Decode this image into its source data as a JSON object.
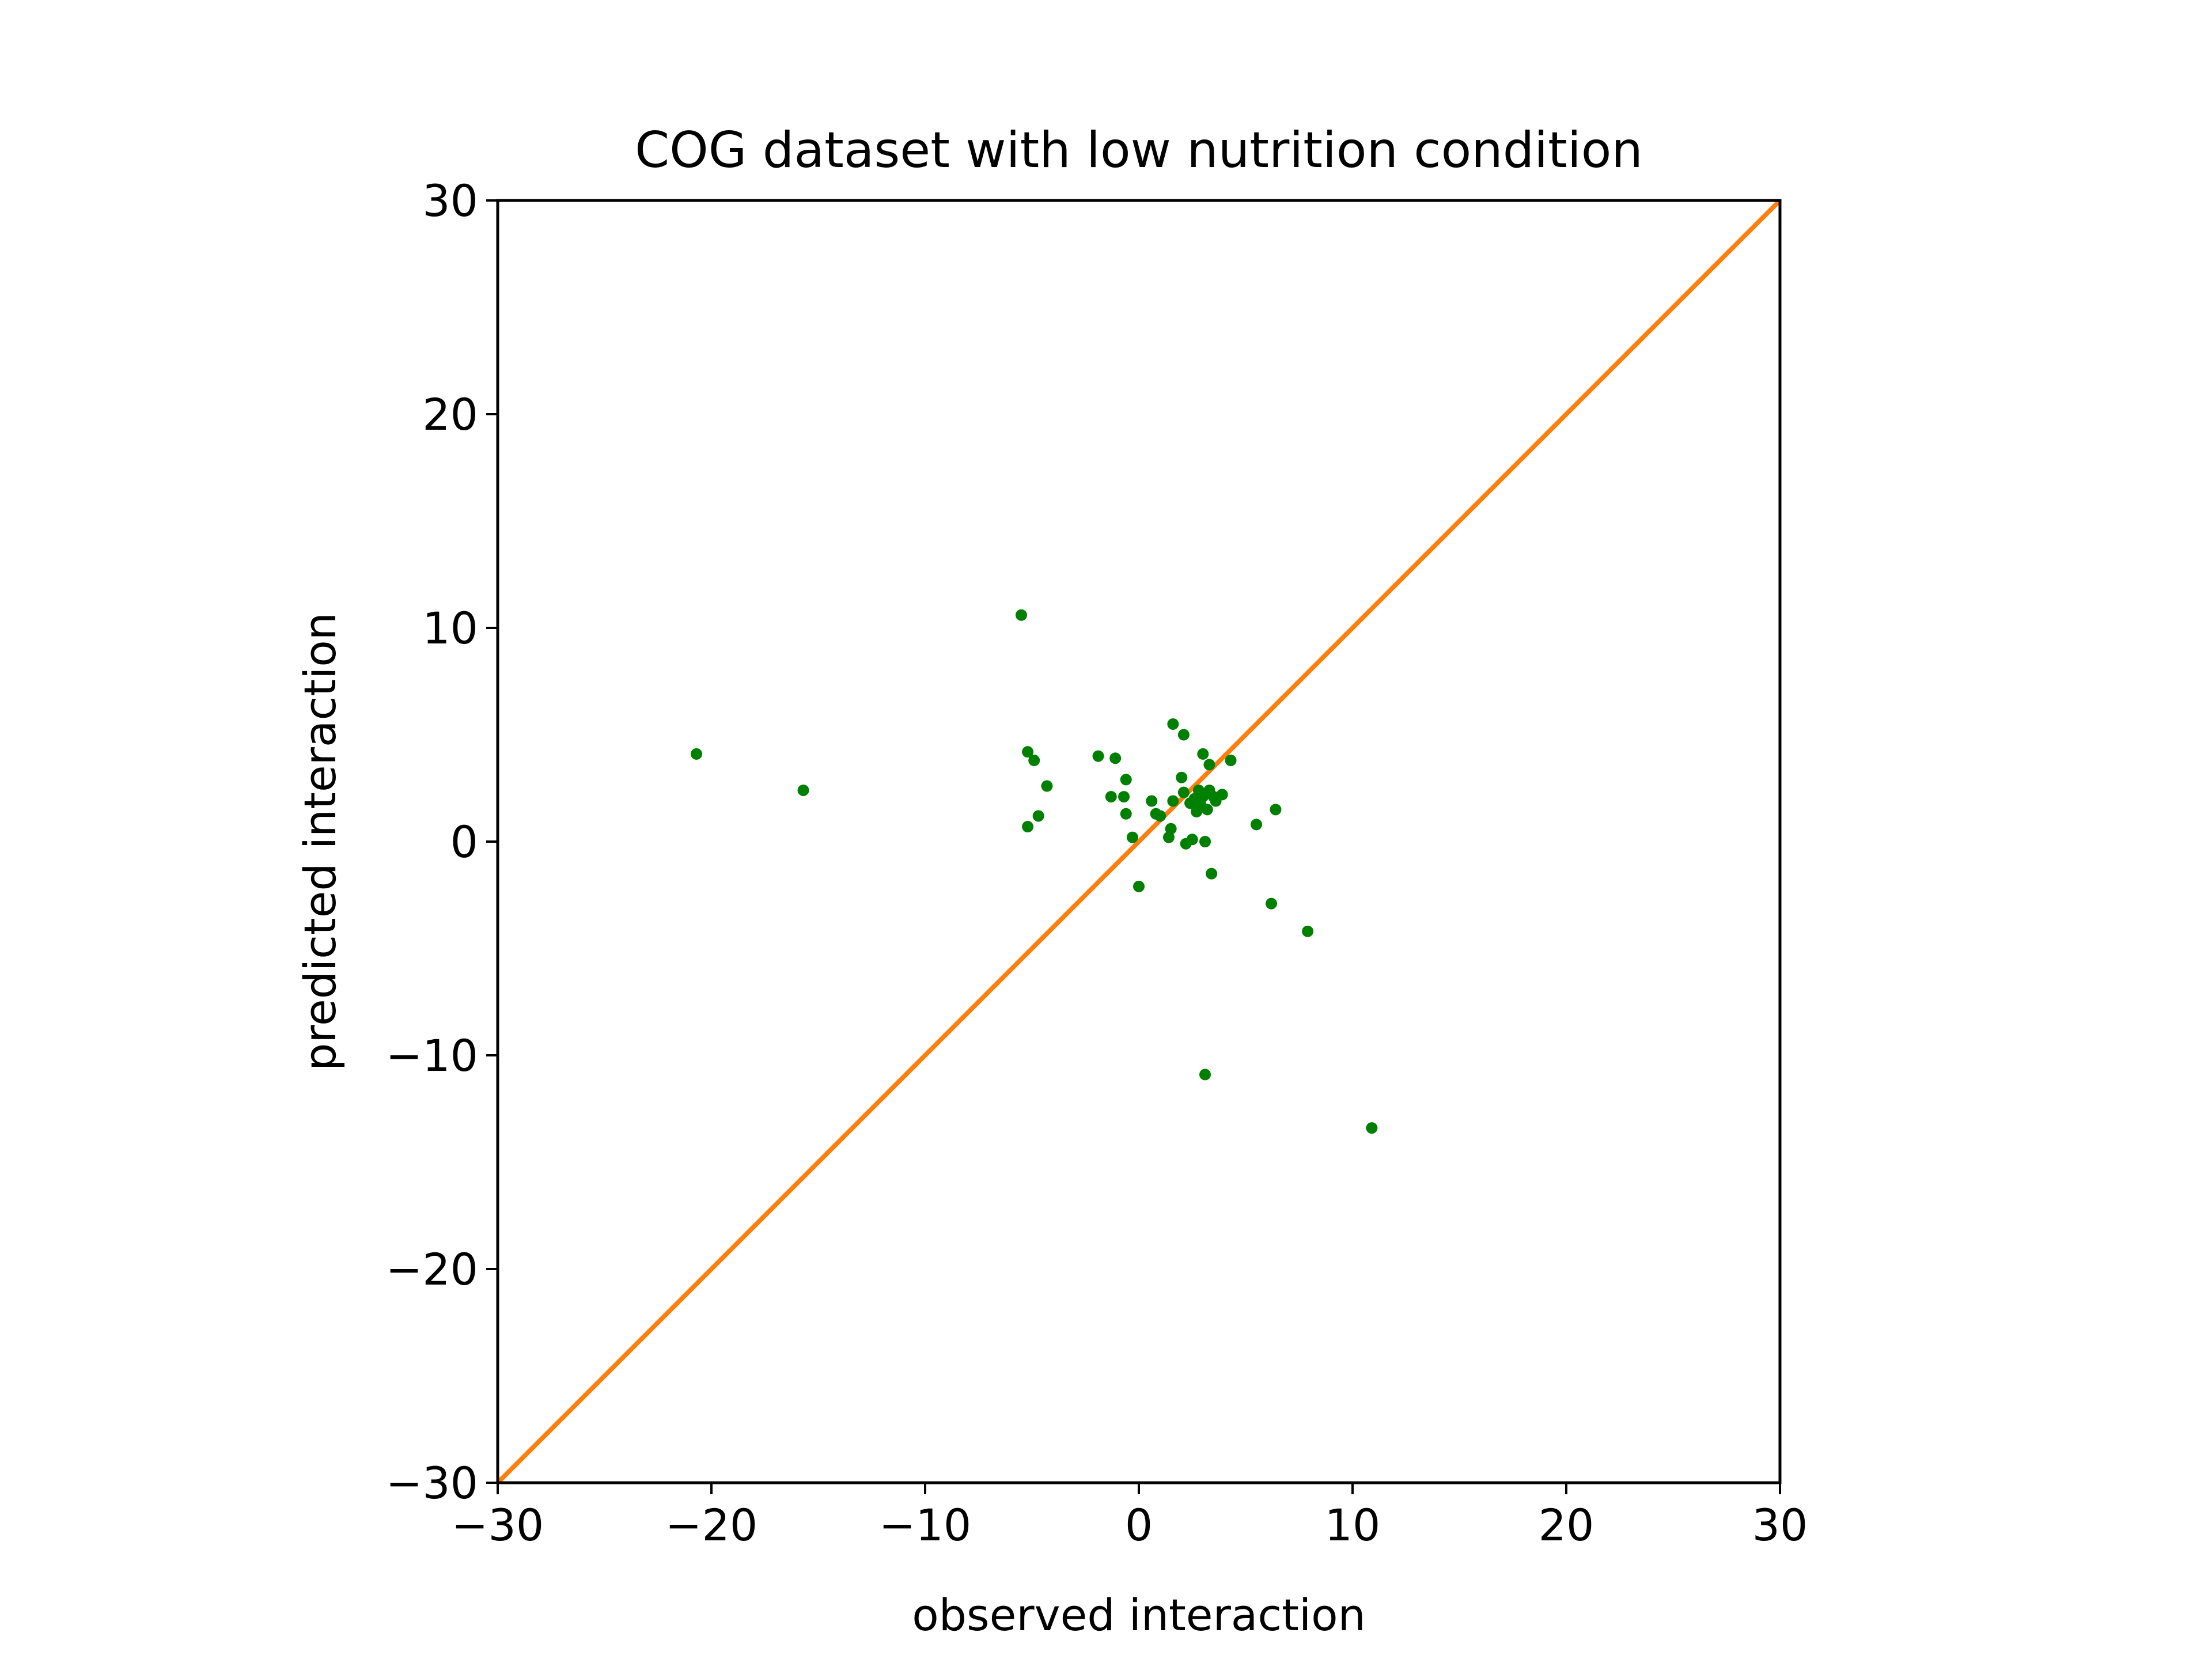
{
  "chart_data": {
    "type": "scatter",
    "title": "COG dataset with low nutrition condition",
    "xlabel": "observed interaction",
    "ylabel": "predicted interaction",
    "xlim": [
      -30,
      30
    ],
    "ylim": [
      -30,
      30
    ],
    "xticks": [
      -30,
      -20,
      -10,
      0,
      10,
      20,
      30
    ],
    "yticks": [
      -30,
      -20,
      -10,
      0,
      10,
      20,
      30
    ],
    "xtick_labels": [
      "−30",
      "−20",
      "−10",
      "0",
      "10",
      "20",
      "30"
    ],
    "ytick_labels": [
      "−30",
      "−20",
      "−10",
      "0",
      "10",
      "20",
      "30"
    ],
    "grid": false,
    "legend": "none",
    "colors": {
      "points": "#008000",
      "reference_line": "#ff7f0e"
    },
    "reference_line": {
      "from": [
        -30,
        -30
      ],
      "to": [
        30,
        30
      ]
    },
    "points": [
      {
        "x": -20.7,
        "y": 4.1
      },
      {
        "x": -15.7,
        "y": 2.4
      },
      {
        "x": -5.5,
        "y": 10.6
      },
      {
        "x": -5.2,
        "y": 4.2
      },
      {
        "x": -4.9,
        "y": 3.8
      },
      {
        "x": -4.3,
        "y": 2.6
      },
      {
        "x": -5.2,
        "y": 0.7
      },
      {
        "x": -4.7,
        "y": 1.2
      },
      {
        "x": -1.9,
        "y": 4.0
      },
      {
        "x": -1.1,
        "y": 3.9
      },
      {
        "x": -0.6,
        "y": 2.9
      },
      {
        "x": -1.3,
        "y": 2.1
      },
      {
        "x": -0.7,
        "y": 2.1
      },
      {
        "x": -0.6,
        "y": 1.3
      },
      {
        "x": -0.3,
        "y": 0.2
      },
      {
        "x": 0.0,
        "y": -2.1
      },
      {
        "x": 0.6,
        "y": 1.9
      },
      {
        "x": 0.8,
        "y": 1.3
      },
      {
        "x": 1.0,
        "y": 1.2
      },
      {
        "x": 1.5,
        "y": 0.6
      },
      {
        "x": 1.4,
        "y": 0.2
      },
      {
        "x": 1.6,
        "y": 1.9
      },
      {
        "x": 1.6,
        "y": 5.5
      },
      {
        "x": 2.1,
        "y": 5.0
      },
      {
        "x": 2.0,
        "y": 3.0
      },
      {
        "x": 2.1,
        "y": 2.3
      },
      {
        "x": 2.2,
        "y": -0.1
      },
      {
        "x": 2.5,
        "y": 0.1
      },
      {
        "x": 2.4,
        "y": 1.8
      },
      {
        "x": 2.6,
        "y": 2.0
      },
      {
        "x": 2.7,
        "y": 1.4
      },
      {
        "x": 2.8,
        "y": 2.4
      },
      {
        "x": 2.9,
        "y": 1.7
      },
      {
        "x": 3.0,
        "y": 4.1
      },
      {
        "x": 3.0,
        "y": 2.1
      },
      {
        "x": 3.1,
        "y": 0.0
      },
      {
        "x": 3.2,
        "y": 1.5
      },
      {
        "x": 3.3,
        "y": 3.6
      },
      {
        "x": 3.3,
        "y": 2.4
      },
      {
        "x": 3.4,
        "y": -1.5
      },
      {
        "x": 3.5,
        "y": 2.1
      },
      {
        "x": 3.6,
        "y": 1.9
      },
      {
        "x": 3.9,
        "y": 2.2
      },
      {
        "x": 4.3,
        "y": 3.8
      },
      {
        "x": 3.1,
        "y": -10.9
      },
      {
        "x": 5.5,
        "y": 0.8
      },
      {
        "x": 6.4,
        "y": 1.5
      },
      {
        "x": 6.2,
        "y": -2.9
      },
      {
        "x": 7.9,
        "y": -4.2
      },
      {
        "x": 10.9,
        "y": -13.4
      }
    ]
  }
}
